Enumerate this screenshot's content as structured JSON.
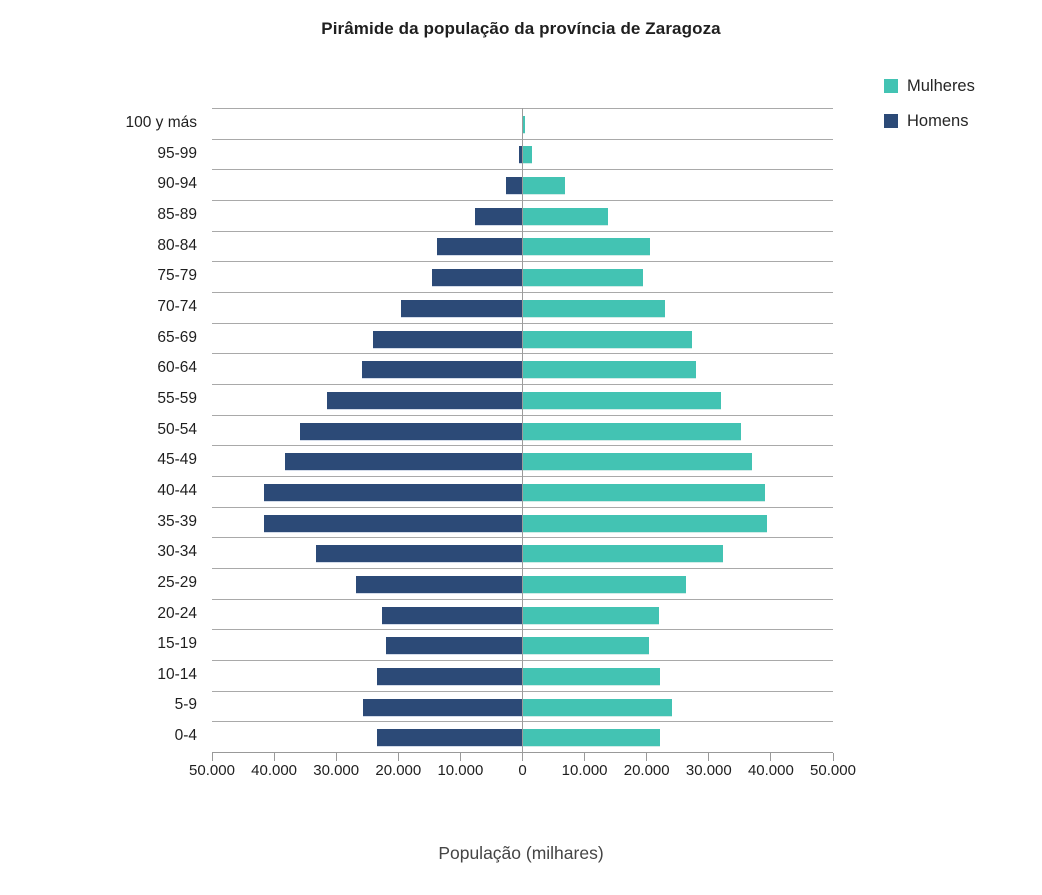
{
  "title": "Pirâmide da população da província de Zaragoza",
  "xlabel": "População (milhares)",
  "legend": [
    {
      "label": "Mulheres",
      "color": "#43C3B3"
    },
    {
      "label": "Homens",
      "color": "#2C4A77"
    }
  ],
  "colors": {
    "mulheres": "#43C3B3",
    "homens": "#2C4A77",
    "gridline": "#A9A9A9",
    "axis": "#999999",
    "title_text": "#1F1F1F",
    "tick_text": "#1F1F1F",
    "xlabel_text": "#454545"
  },
  "chart_data": {
    "type": "bar",
    "subtype": "population-pyramid",
    "orientation": "horizontal",
    "title": "Pirâmide da população da província de Zaragoza",
    "xlabel": "População (milhares)",
    "ylabel": "",
    "grid": "horizontal-only",
    "legend_position": "top-right",
    "categories": [
      "100 y más",
      "95-99",
      "90-94",
      "85-89",
      "80-84",
      "75-79",
      "70-74",
      "65-69",
      "60-64",
      "55-59",
      "50-54",
      "45-49",
      "40-44",
      "35-39",
      "30-34",
      "25-29",
      "20-24",
      "15-19",
      "10-14",
      "5-9",
      "0-4"
    ],
    "series": [
      {
        "name": "Homens",
        "side": "left",
        "color": "#2C4A77",
        "values": [
          100,
          500,
          2700,
          7600,
          13700,
          14600,
          19600,
          24100,
          25900,
          31500,
          35800,
          38300,
          41600,
          41700,
          33300,
          26800,
          22600,
          22000,
          23500,
          25700,
          23500
        ]
      },
      {
        "name": "Mulheres",
        "side": "right",
        "color": "#43C3B3",
        "values": [
          400,
          1500,
          6800,
          13700,
          20600,
          19400,
          23000,
          27300,
          27900,
          32000,
          35200,
          37000,
          39000,
          39400,
          32300,
          26300,
          22000,
          20400,
          22200,
          24000,
          22200
        ]
      }
    ],
    "x_axis": {
      "range": [
        -50000,
        50000
      ],
      "tick_values": [
        -50000,
        -40000,
        -30000,
        -20000,
        -10000,
        0,
        10000,
        20000,
        30000,
        40000,
        50000
      ],
      "tick_labels": [
        "50.000",
        "40.000",
        "30.000",
        "20.000",
        "10.000",
        "0",
        "10.000",
        "20.000",
        "30.000",
        "40.000",
        "50.000"
      ]
    }
  }
}
